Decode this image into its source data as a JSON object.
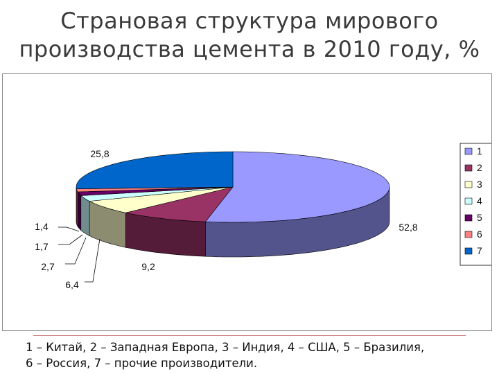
{
  "title": {
    "line1": "Страновая структура мирового",
    "line2": "производства  цемента в 2010 году, %"
  },
  "caption": {
    "line1": "1 – Китай, 2 – Западная Европа, 3 – Индия, 4 – США, 5 – Бразилия,",
    "line2": "6 – Россия, 7 – прочие производители."
  },
  "colors": {
    "s1": "#9999ff",
    "s2": "#993366",
    "s3": "#ffffcc",
    "s4": "#ccffff",
    "s5": "#660066",
    "s6": "#ff8080",
    "s7": "#0066cc"
  },
  "chart_data": {
    "type": "pie",
    "style": "3d",
    "categories": [
      "1",
      "2",
      "3",
      "4",
      "5",
      "6",
      "7"
    ],
    "values": [
      52.8,
      9.2,
      6.4,
      2.7,
      1.7,
      1.4,
      25.8
    ],
    "data_labels": [
      "52,8",
      "9,2",
      "6,4",
      "2,7",
      "1,7",
      "1,4",
      "25,8"
    ],
    "legend": {
      "placement": "right",
      "entries": [
        "1",
        "2",
        "3",
        "4",
        "5",
        "6",
        "7"
      ]
    }
  }
}
